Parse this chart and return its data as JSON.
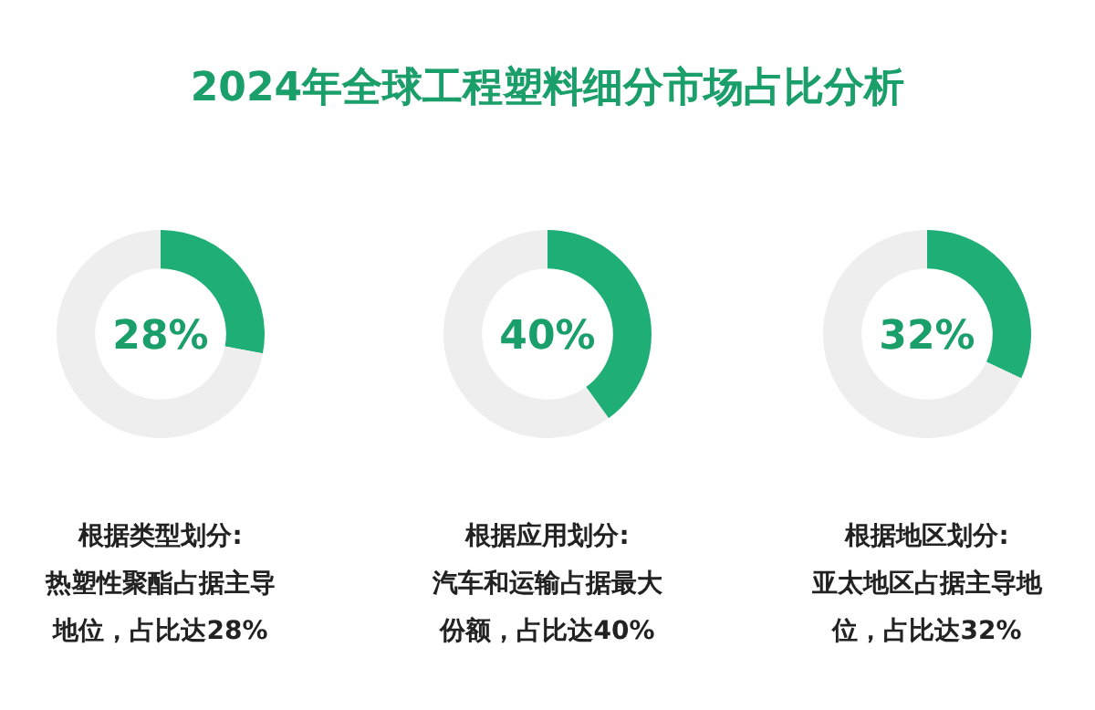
{
  "chart_data": [
    {
      "type": "donut",
      "title": "2024年全球工程塑料细分市场占比分析",
      "categories": [
        null,
        null
      ],
      "values": [
        28,
        72
      ],
      "colors": [
        "#1fae76",
        "#eeeeee"
      ],
      "annotations": [
        "28%",
        "根据类型划分:",
        "热塑性聚酯占据主导",
        "地位，占比达28%"
      ]
    },
    {
      "type": "donut",
      "categories": [
        null,
        null
      ],
      "values": [
        40,
        60
      ],
      "colors": [
        "#1fae76",
        "#eeeeee"
      ],
      "annotations": [
        "40%",
        "根据应用划分:",
        "汽车和运输占据最大",
        "份额，占比达40%"
      ]
    },
    {
      "type": "donut",
      "categories": [
        null,
        null
      ],
      "values": [
        32,
        68
      ],
      "colors": [
        "#1fae76",
        "#eeeeee"
      ],
      "annotations": [
        "32%",
        "根据地区划分:",
        "亚太地区占据主导地",
        "位，占比达32%"
      ]
    }
  ]
}
